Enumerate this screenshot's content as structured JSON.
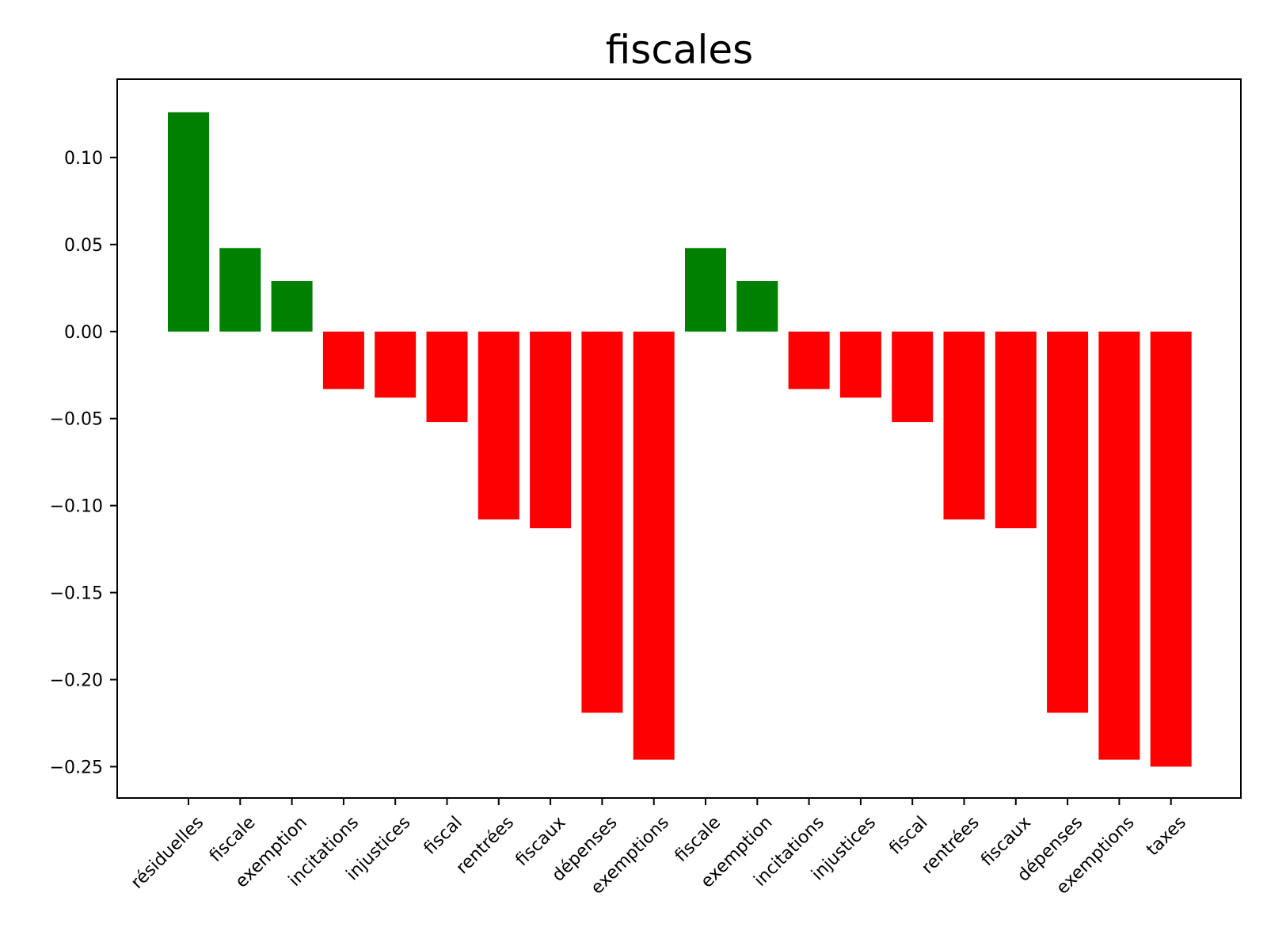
{
  "chart_data": {
    "type": "bar",
    "title": "fiscales",
    "xlabel": "",
    "ylabel": "",
    "categories": [
      "résiduelles",
      "fiscale",
      "exemption",
      "incitations",
      "injustices",
      "fiscal",
      "rentrées",
      "fiscaux",
      "dépenses",
      "exemptions",
      "fiscale",
      "exemption",
      "incitations",
      "injustices",
      "fiscal",
      "rentrées",
      "fiscaux",
      "dépenses",
      "exemptions",
      "taxes"
    ],
    "values": [
      0.126,
      0.048,
      0.029,
      -0.033,
      -0.038,
      -0.052,
      -0.108,
      -0.113,
      -0.219,
      -0.246,
      0.048,
      0.029,
      -0.033,
      -0.038,
      -0.052,
      -0.108,
      -0.113,
      -0.219,
      -0.246,
      -0.25
    ],
    "ylim": [
      -0.268,
      0.145
    ],
    "yticks": [
      0.1,
      0.05,
      0.0,
      -0.05,
      -0.1,
      -0.15,
      -0.2,
      -0.25
    ],
    "ytick_labels": [
      "0.10",
      "0.05",
      "0.00",
      "−0.05",
      "−0.10",
      "−0.15",
      "−0.20",
      "−0.25"
    ],
    "grid": false,
    "colors": {
      "positive": "#008000",
      "negative": "#ff0000"
    }
  }
}
